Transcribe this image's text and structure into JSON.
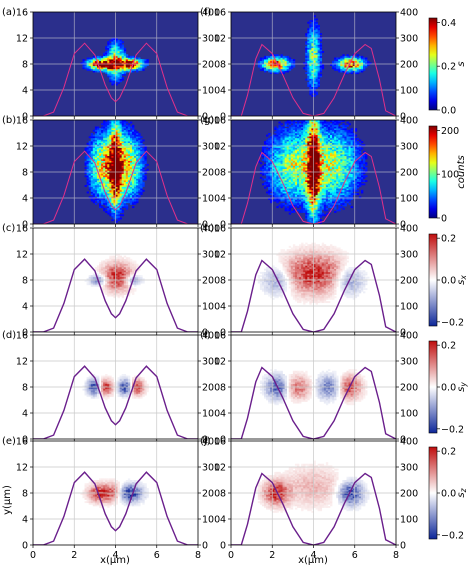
{
  "chart_data": {
    "type": "heatmap",
    "layout": {
      "rows": 5,
      "cols": 2
    },
    "axes": {
      "xlabel": "x(μm)",
      "ylabel": "y(μm)",
      "xlim": [
        0,
        8
      ],
      "ylim": [
        0,
        16
      ],
      "xticks": [
        0,
        2,
        4,
        6,
        8
      ],
      "yticks": [
        0,
        4,
        8,
        12,
        16
      ],
      "y2lim": [
        0,
        400
      ],
      "y2ticks": [
        0,
        100,
        200,
        300,
        400
      ]
    },
    "panels": [
      {
        "label": "(a)",
        "row": 0,
        "col": 0,
        "map": "s",
        "style": "dark",
        "centers": [
          [
            3.3,
            8.0,
            0.45,
            0.6,
            1.0
          ],
          [
            4.7,
            8.0,
            0.45,
            0.6,
            1.0
          ],
          [
            4.0,
            8.5,
            0.3,
            2.0,
            0.6
          ]
        ],
        "profile": "double"
      },
      {
        "label": "(f)",
        "row": 0,
        "col": 1,
        "map": "s",
        "style": "dark",
        "centers": [
          [
            2.2,
            8.0,
            0.45,
            0.7,
            0.9
          ],
          [
            5.8,
            8.0,
            0.45,
            0.7,
            0.9
          ],
          [
            4.0,
            9.0,
            0.25,
            3.5,
            0.5
          ]
        ],
        "profile": "single"
      },
      {
        "label": "(b)",
        "row": 1,
        "col": 0,
        "map": "counts",
        "style": "dark",
        "centers": [
          [
            4.0,
            9.0,
            0.2,
            4.0,
            1.0
          ],
          [
            3.4,
            9.0,
            0.5,
            3.5,
            0.6
          ],
          [
            4.6,
            9.0,
            0.5,
            3.5,
            0.6
          ]
        ],
        "profile": "double"
      },
      {
        "label": "(g)",
        "row": 1,
        "col": 1,
        "map": "counts",
        "style": "dark",
        "centers": [
          [
            4.0,
            9.0,
            0.2,
            5.0,
            1.0
          ],
          [
            3.0,
            9.0,
            0.9,
            4.0,
            0.5
          ],
          [
            5.0,
            9.0,
            0.9,
            4.0,
            0.5
          ]
        ],
        "profile": "single"
      },
      {
        "label": "(c)",
        "row": 2,
        "col": 0,
        "map": "sx",
        "style": "light",
        "centers": [
          [
            4.1,
            8.5,
            0.5,
            1.4,
            0.9
          ],
          [
            3.2,
            8.0,
            0.3,
            0.6,
            -0.6
          ],
          [
            4.8,
            8.0,
            0.3,
            0.6,
            -0.6
          ]
        ],
        "profile": "double"
      },
      {
        "label": "(h)",
        "row": 2,
        "col": 1,
        "map": "sx",
        "style": "light",
        "centers": [
          [
            4.0,
            9.0,
            1.0,
            2.0,
            0.9
          ],
          [
            2.3,
            8.0,
            0.5,
            1.5,
            -0.5
          ],
          [
            5.7,
            8.0,
            0.5,
            1.5,
            -0.5
          ]
        ],
        "profile": "single"
      },
      {
        "label": "(d)",
        "row": 3,
        "col": 0,
        "map": "sy",
        "style": "light",
        "centers": [
          [
            3.0,
            8.0,
            0.25,
            0.8,
            -0.9
          ],
          [
            3.5,
            8.0,
            0.25,
            0.8,
            0.9
          ],
          [
            4.5,
            8.0,
            0.25,
            0.8,
            -0.9
          ],
          [
            5.0,
            8.0,
            0.25,
            0.8,
            0.9
          ]
        ],
        "profile": "double"
      },
      {
        "label": "(i)",
        "row": 3,
        "col": 1,
        "map": "sy",
        "style": "light",
        "centers": [
          [
            2.3,
            8.0,
            0.4,
            1.2,
            -0.8
          ],
          [
            3.2,
            8.0,
            0.5,
            1.2,
            0.6
          ],
          [
            4.8,
            8.0,
            0.5,
            1.2,
            -0.6
          ],
          [
            5.7,
            8.0,
            0.4,
            1.2,
            0.8
          ]
        ],
        "profile": "single"
      },
      {
        "label": "(e)",
        "row": 4,
        "col": 0,
        "map": "sz",
        "style": "light",
        "centers": [
          [
            3.3,
            8.0,
            0.4,
            0.9,
            0.9
          ],
          [
            4.7,
            8.0,
            0.4,
            0.9,
            -0.9
          ],
          [
            4.0,
            8.2,
            0.3,
            1.0,
            0.4
          ]
        ],
        "profile": "double"
      },
      {
        "label": "(j)",
        "row": 4,
        "col": 1,
        "map": "sz",
        "style": "light",
        "centers": [
          [
            2.2,
            8.0,
            0.4,
            1.2,
            0.9
          ],
          [
            5.8,
            8.0,
            0.4,
            1.2,
            -0.9
          ],
          [
            4.0,
            9.0,
            1.0,
            2.0,
            0.3
          ]
        ],
        "profile": "single"
      }
    ],
    "profiles": {
      "double": {
        "x": [
          0,
          0.5,
          1.0,
          1.5,
          2.0,
          2.5,
          3.0,
          3.5,
          3.8,
          4.0,
          4.2,
          4.5,
          5.0,
          5.5,
          6.0,
          6.5,
          7.0,
          7.5,
          8.0
        ],
        "y": [
          0,
          0,
          15,
          110,
          240,
          280,
          235,
          120,
          70,
          55,
          70,
          120,
          235,
          280,
          240,
          110,
          15,
          0,
          0
        ]
      },
      "single": {
        "x": [
          0,
          0.5,
          0.8,
          1.2,
          1.5,
          2.0,
          2.5,
          3.0,
          3.5,
          4.0,
          4.5,
          5.0,
          5.5,
          6.0,
          6.5,
          6.8,
          7.2,
          7.5,
          8.0
        ],
        "y": [
          0,
          0,
          80,
          220,
          275,
          240,
          160,
          70,
          10,
          0,
          10,
          70,
          160,
          240,
          275,
          260,
          140,
          20,
          0
        ]
      }
    },
    "colorbars": [
      {
        "map": "s",
        "row": 0,
        "label": "s",
        "ticks": [
          0.0,
          0.2,
          0.4
        ],
        "tick_labels": [
          "0.0",
          "0.2",
          "0.4"
        ],
        "range": [
          0,
          0.42
        ],
        "scheme": "jet"
      },
      {
        "map": "counts",
        "row": 1,
        "label": "counts",
        "ticks": [
          0,
          100,
          200
        ],
        "tick_labels": [
          "0",
          "100",
          "200"
        ],
        "range": [
          0,
          210
        ],
        "scheme": "jet"
      },
      {
        "map": "sx",
        "row": 2,
        "label": "s",
        "sub": "x",
        "ticks": [
          -0.2,
          0.0,
          0.2
        ],
        "tick_labels": [
          "−0.2",
          "0.0",
          "0.2"
        ],
        "range": [
          -0.22,
          0.22
        ],
        "scheme": "bwr"
      },
      {
        "map": "sy",
        "row": 3,
        "label": "s",
        "sub": "y",
        "ticks": [
          -0.2,
          0.0,
          0.2
        ],
        "tick_labels": [
          "−0.2",
          "0.0",
          "0.2"
        ],
        "range": [
          -0.22,
          0.22
        ],
        "scheme": "bwr"
      },
      {
        "map": "sz",
        "row": 4,
        "label": "s",
        "sub": "z",
        "ticks": [
          -0.2,
          0.0,
          0.2
        ],
        "tick_labels": [
          "−0.2",
          "0.0",
          "0.2"
        ],
        "range": [
          -0.22,
          0.22
        ],
        "scheme": "bwr"
      }
    ],
    "colors": {
      "dark_background": "#2b2f8c",
      "profile_line": "#e0308a",
      "profile_line_light": "#6a1f8c",
      "grid_dark": "#c8c8d0",
      "grid_light": "#c8c8c8"
    }
  }
}
